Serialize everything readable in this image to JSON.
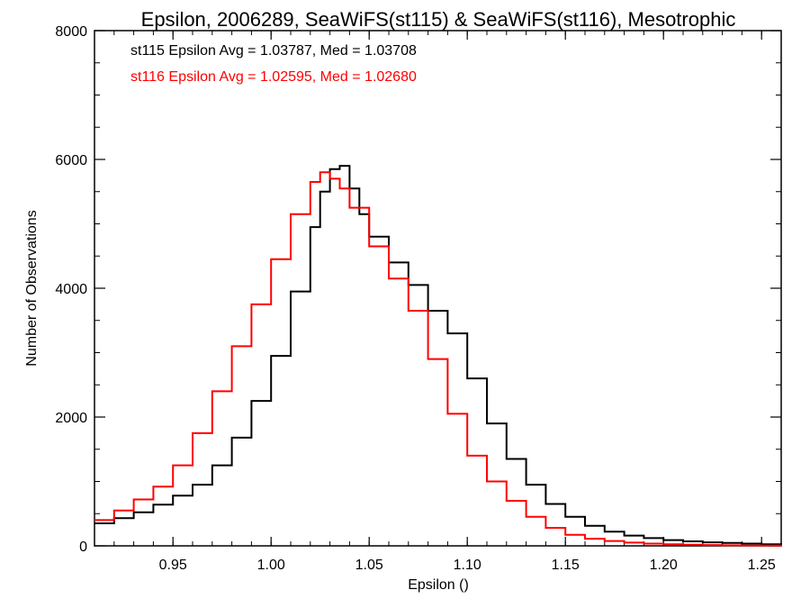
{
  "chart_data": {
    "type": "line",
    "title": "Epsilon, 2006289, SeaWiFS(st115) & SeaWiFS(st116), Mesotrophic",
    "xlabel": "Epsilon ()",
    "ylabel": "Number of Observations",
    "xlim": [
      0.91,
      1.26
    ],
    "ylim": [
      0,
      8000
    ],
    "xticks": [
      "0.95",
      "1.00",
      "1.05",
      "1.10",
      "1.15",
      "1.20",
      "1.25"
    ],
    "yticks": [
      "0",
      "2000",
      "4000",
      "6000",
      "8000"
    ],
    "step": true,
    "annotations": [
      {
        "text": "st115 Epsilon Avg = 1.03787, Med = 1.03708",
        "color": "#000000"
      },
      {
        "text": "st116 Epsilon Avg = 1.02595, Med = 1.02680",
        "color": "#ff0000"
      }
    ],
    "series": [
      {
        "color": "#000000",
        "points": [
          [
            0.91,
            350
          ],
          [
            0.92,
            430
          ],
          [
            0.93,
            520
          ],
          [
            0.94,
            640
          ],
          [
            0.95,
            780
          ],
          [
            0.96,
            950
          ],
          [
            0.97,
            1250
          ],
          [
            0.98,
            1680
          ],
          [
            0.99,
            2250
          ],
          [
            1.0,
            2950
          ],
          [
            1.01,
            3950
          ],
          [
            1.02,
            4950
          ],
          [
            1.025,
            5500
          ],
          [
            1.03,
            5850
          ],
          [
            1.035,
            5900
          ],
          [
            1.04,
            5550
          ],
          [
            1.045,
            5150
          ],
          [
            1.05,
            4800
          ],
          [
            1.06,
            4400
          ],
          [
            1.07,
            4050
          ],
          [
            1.08,
            3650
          ],
          [
            1.09,
            3300
          ],
          [
            1.1,
            2600
          ],
          [
            1.11,
            1900
          ],
          [
            1.12,
            1350
          ],
          [
            1.13,
            950
          ],
          [
            1.14,
            650
          ],
          [
            1.15,
            450
          ],
          [
            1.16,
            310
          ],
          [
            1.17,
            220
          ],
          [
            1.18,
            160
          ],
          [
            1.19,
            120
          ],
          [
            1.2,
            90
          ],
          [
            1.21,
            70
          ],
          [
            1.22,
            55
          ],
          [
            1.23,
            45
          ],
          [
            1.24,
            35
          ],
          [
            1.25,
            25
          ],
          [
            1.26,
            20
          ]
        ]
      },
      {
        "color": "#ff0000",
        "points": [
          [
            0.91,
            400
          ],
          [
            0.92,
            550
          ],
          [
            0.93,
            720
          ],
          [
            0.94,
            920
          ],
          [
            0.95,
            1250
          ],
          [
            0.96,
            1750
          ],
          [
            0.97,
            2400
          ],
          [
            0.98,
            3100
          ],
          [
            0.99,
            3750
          ],
          [
            1.0,
            4450
          ],
          [
            1.01,
            5150
          ],
          [
            1.02,
            5650
          ],
          [
            1.025,
            5800
          ],
          [
            1.03,
            5700
          ],
          [
            1.035,
            5550
          ],
          [
            1.04,
            5250
          ],
          [
            1.05,
            4650
          ],
          [
            1.06,
            4150
          ],
          [
            1.07,
            3650
          ],
          [
            1.08,
            2900
          ],
          [
            1.09,
            2050
          ],
          [
            1.1,
            1400
          ],
          [
            1.11,
            1000
          ],
          [
            1.12,
            700
          ],
          [
            1.13,
            450
          ],
          [
            1.14,
            280
          ],
          [
            1.15,
            170
          ],
          [
            1.16,
            110
          ],
          [
            1.17,
            75
          ],
          [
            1.18,
            50
          ],
          [
            1.19,
            35
          ],
          [
            1.2,
            25
          ],
          [
            1.21,
            18
          ],
          [
            1.22,
            12
          ],
          [
            1.23,
            8
          ],
          [
            1.24,
            5
          ],
          [
            1.25,
            4
          ],
          [
            1.26,
            3
          ]
        ]
      }
    ]
  }
}
